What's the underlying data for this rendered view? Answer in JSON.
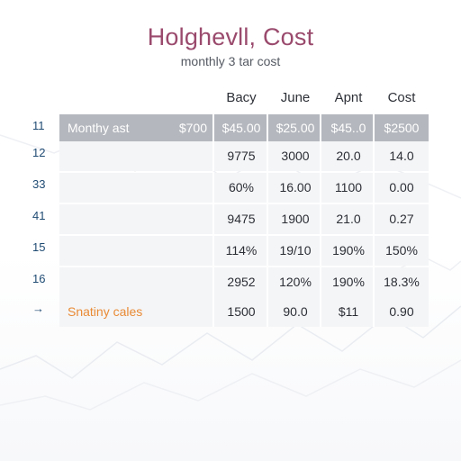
{
  "title": "Holghevll, Cost",
  "subtitle": "monthly 3 tar cost",
  "columns": [
    "Bacy",
    "June",
    "Apnt",
    "Cost"
  ],
  "rows": [
    {
      "num": "11",
      "label": "Monthy ast",
      "pre": "$700",
      "values": [
        "$45.00",
        "$25.00",
        "$45..0",
        "$2500"
      ]
    },
    {
      "num": "12",
      "label": "",
      "pre": "",
      "values": [
        "9775",
        "3000",
        "20.0",
        "14.0"
      ]
    },
    {
      "num": "33",
      "label": "",
      "pre": "",
      "values": [
        "60%",
        "16.00",
        "1100",
        "0.00"
      ]
    },
    {
      "num": "41",
      "label": "",
      "pre": "",
      "values": [
        "9475",
        "1900",
        "21.0",
        "0.27"
      ]
    },
    {
      "num": "15",
      "label": "",
      "pre": "",
      "values": [
        "114%",
        "19/10",
        "190%",
        "150%"
      ]
    },
    {
      "num": "16",
      "label": "",
      "pre": "",
      "values": [
        "2952",
        "120%",
        "190%",
        "18.3%"
      ]
    },
    {
      "num": "→",
      "label": "Snatiny cales",
      "pre": "",
      "values": [
        "1500",
        "90.0",
        "$11",
        "0.90"
      ]
    }
  ],
  "colors": {
    "title": "#9a4a6c",
    "header_row": "#b4b7bd",
    "row_fill": "#f4f5f7",
    "row_number": "#1f4b73",
    "accent_label": "#e98a35"
  },
  "chart_data": {
    "type": "table",
    "title": "Holghevll, Cost",
    "subtitle": "monthly 3 tar cost",
    "columns": [
      "Bacy",
      "June",
      "Apnt",
      "Cost"
    ],
    "rows": [
      [
        "$45.00",
        "$25.00",
        "$45..0",
        "$2500"
      ],
      [
        "9775",
        "3000",
        "20.0",
        "14.0"
      ],
      [
        "60%",
        "16.00",
        "1100",
        "0.00"
      ],
      [
        "9475",
        "1900",
        "21.0",
        "0.27"
      ],
      [
        "114%",
        "19/10",
        "190%",
        "150%"
      ],
      [
        "2952",
        "120%",
        "190%",
        "18.3%"
      ],
      [
        "1500",
        "90.0",
        "$11",
        "0.90"
      ]
    ]
  }
}
